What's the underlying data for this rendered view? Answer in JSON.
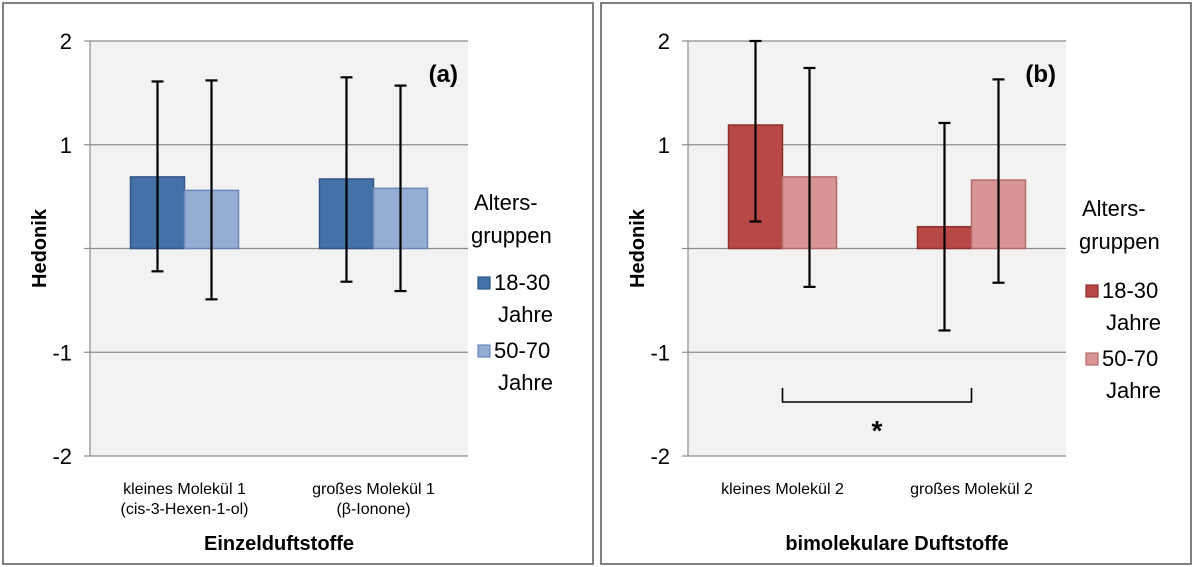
{
  "chart_data": [
    {
      "type": "bar",
      "panel_label": "(a)",
      "ylabel": "Hedonik",
      "xlabel": "Einzelduftstoffe",
      "ylim": [
        -2,
        2
      ],
      "yticks": [
        "2",
        "1",
        "",
        "-1",
        "-2"
      ],
      "grid": true,
      "categories": [
        [
          "kleines Molekül 1",
          "(cis-3-Hexen-1-ol)"
        ],
        [
          "großes Molekül 1",
          "(β-Ionone)"
        ]
      ],
      "legend_title": [
        "Alters-",
        "gruppen"
      ],
      "legend_position": "right",
      "series": [
        {
          "name": "18-30 Jahre",
          "legend_lines": [
            "18-30",
            "Jahre"
          ],
          "color": "#4472a8",
          "stroke": "#2f5586",
          "values": [
            0.69,
            0.67
          ],
          "err_low": [
            -0.22,
            -0.32
          ],
          "err_high": [
            1.61,
            1.65
          ]
        },
        {
          "name": "50-70 Jahre",
          "legend_lines": [
            "50-70",
            "Jahre"
          ],
          "color": "#95add3",
          "stroke": "#6c88b8",
          "values": [
            0.56,
            0.58
          ],
          "err_low": [
            -0.49,
            -0.41
          ],
          "err_high": [
            1.62,
            1.57
          ]
        }
      ]
    },
    {
      "type": "bar",
      "panel_label": "(b)",
      "ylabel": "Hedonik",
      "xlabel": "bimolekulare Duftstoffe",
      "ylim": [
        -2,
        2
      ],
      "yticks": [
        "2",
        "1",
        "",
        "-1",
        "-2"
      ],
      "grid": true,
      "categories": [
        [
          "kleines Molekül 2"
        ],
        [
          "großes Molekül 2"
        ]
      ],
      "legend_title": [
        "Alters-",
        "gruppen"
      ],
      "legend_position": "right",
      "significance": {
        "label": "*",
        "between": [
          0,
          1
        ]
      },
      "series": [
        {
          "name": "18-30 Jahre",
          "legend_lines": [
            "18-30",
            "Jahre"
          ],
          "color": "#b84845",
          "stroke": "#8e2f2c",
          "values": [
            1.19,
            0.21
          ],
          "err_low": [
            0.26,
            -0.79
          ],
          "err_high": [
            2.0,
            1.21
          ]
        },
        {
          "name": "50-70 Jahre",
          "legend_lines": [
            "50-70",
            "Jahre"
          ],
          "color": "#d79695",
          "stroke": "#b56b6a",
          "values": [
            0.69,
            0.66
          ],
          "err_low": [
            -0.37,
            -0.33
          ],
          "err_high": [
            1.74,
            1.63
          ]
        }
      ]
    }
  ]
}
